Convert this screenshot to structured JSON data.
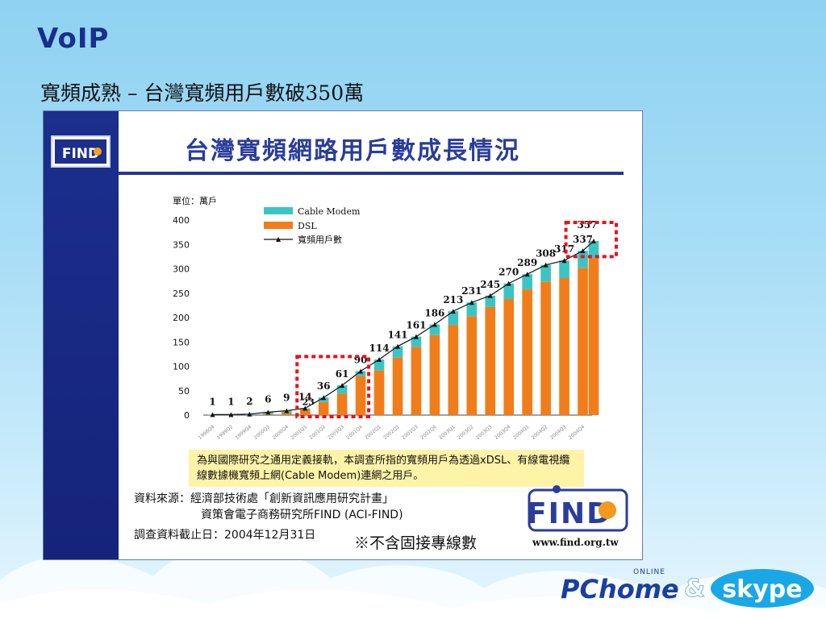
{
  "slide": {
    "title": "VoIP",
    "subtitle": "寬頻成熟 – 台灣寬頻用戶數破350萬"
  },
  "panel": {
    "logo_small": "FIND",
    "header_title": "台灣寬頻網路用戶數成長情況",
    "note": "為與國際研究之通用定義接軌，本調查所指的寬頻用戶為透過xDSL、有線電視纜線數據機寬頻上網(Cable Modem)連網之用戶。",
    "source_label": "資料來源：經濟部技術處「創新資訊應用研究計畫」",
    "source_line2": "資策會電子商務研究所FIND (ACI-FIND)",
    "date_label": "調查資料截止日：2004年12月31日",
    "notice": "※不含固接專線數",
    "find_logo": "FIND",
    "find_url": "www.find.org.tw"
  },
  "brand": {
    "pchome": "PChome",
    "online": "ONLINE",
    "amp": "&",
    "skype": "skype"
  },
  "chart_data": {
    "type": "bar",
    "unit_label": "單位：萬戶",
    "ylim": [
      0,
      400
    ],
    "yticks": [
      0,
      50,
      100,
      150,
      200,
      250,
      300,
      350,
      400
    ],
    "categories": [
      "1998Q4",
      "1999Q2",
      "1999Q4",
      "2000Q2",
      "2000Q4",
      "2001Q1",
      "2001Q2",
      "2001Q3",
      "2001Q4",
      "2002Q1",
      "2002Q2",
      "2002Q3",
      "2002Q4",
      "2003Q1",
      "2003Q2",
      "2003Q3",
      "2003Q4",
      "2004Q1",
      "2004Q2",
      "2004Q3",
      "2004Q4"
    ],
    "series": [
      {
        "name": "DSL",
        "color": "#f07d1a",
        "values": [
          0,
          0,
          0,
          2,
          5,
          12,
          27,
          44,
          80,
          92,
          118,
          140,
          164,
          185,
          203,
          222,
          238,
          258,
          274,
          281,
          302
        ]
      },
      {
        "name": "Cable Modem",
        "color": "#3cc4c4",
        "values": [
          1,
          1,
          2,
          4,
          4,
          2,
          9,
          17,
          10,
          22,
          23,
          21,
          22,
          28,
          28,
          23,
          32,
          31,
          34,
          36,
          35
        ]
      },
      {
        "name": "寬頻用戶數",
        "color": "#111111",
        "values": [
          1,
          1,
          2,
          6,
          9,
          14,
          36,
          61,
          90,
          114,
          141,
          161,
          186,
          213,
          231,
          245,
          270,
          289,
          308,
          317,
          337
        ]
      }
    ],
    "total_labels": [
      "1",
      "1",
      "2",
      "6",
      "9",
      "14",
      "36",
      "61",
      "90",
      "114",
      "141",
      "161",
      "186",
      "213",
      "231",
      "245",
      "270",
      "289",
      "308",
      "317",
      "337"
    ],
    "extra_label": "23",
    "final_label": "357",
    "final_value": 357,
    "highlight_color": "#e2141c",
    "legend_position": "top-left"
  }
}
